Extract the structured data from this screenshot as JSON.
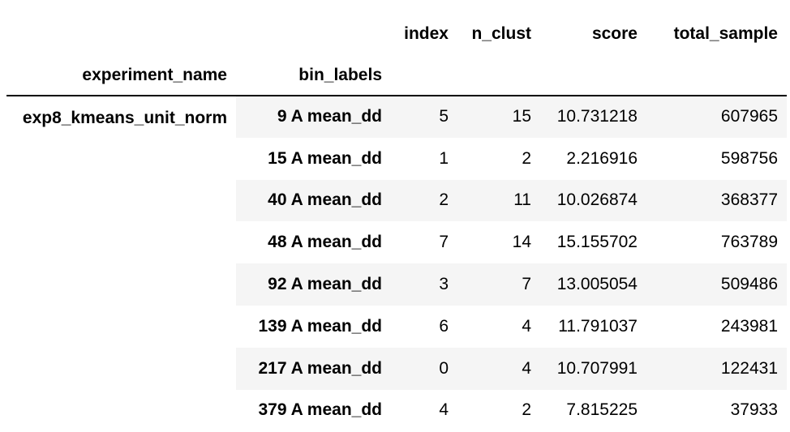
{
  "columns": {
    "index_label": "index",
    "n_clust_label": "n_clust",
    "score_label": "score",
    "total_sample_label": "total_sample"
  },
  "index_names": {
    "level0": "experiment_name",
    "level1": "bin_labels"
  },
  "experiment": "exp8_kmeans_unit_norm",
  "rows": [
    {
      "bin": "9 A mean_dd",
      "index": "5",
      "n_clust": "15",
      "score": "10.731218",
      "total_sample": "607965"
    },
    {
      "bin": "15 A mean_dd",
      "index": "1",
      "n_clust": "2",
      "score": "2.216916",
      "total_sample": "598756"
    },
    {
      "bin": "40 A mean_dd",
      "index": "2",
      "n_clust": "11",
      "score": "10.026874",
      "total_sample": "368377"
    },
    {
      "bin": "48 A mean_dd",
      "index": "7",
      "n_clust": "14",
      "score": "15.155702",
      "total_sample": "763789"
    },
    {
      "bin": "92 A mean_dd",
      "index": "3",
      "n_clust": "7",
      "score": "13.005054",
      "total_sample": "509486"
    },
    {
      "bin": "139 A mean_dd",
      "index": "6",
      "n_clust": "4",
      "score": "11.791037",
      "total_sample": "243981"
    },
    {
      "bin": "217 A mean_dd",
      "index": "0",
      "n_clust": "4",
      "score": "10.707991",
      "total_sample": "122431"
    },
    {
      "bin": "379 A mean_dd",
      "index": "4",
      "n_clust": "2",
      "score": "7.815225",
      "total_sample": "37933"
    }
  ]
}
